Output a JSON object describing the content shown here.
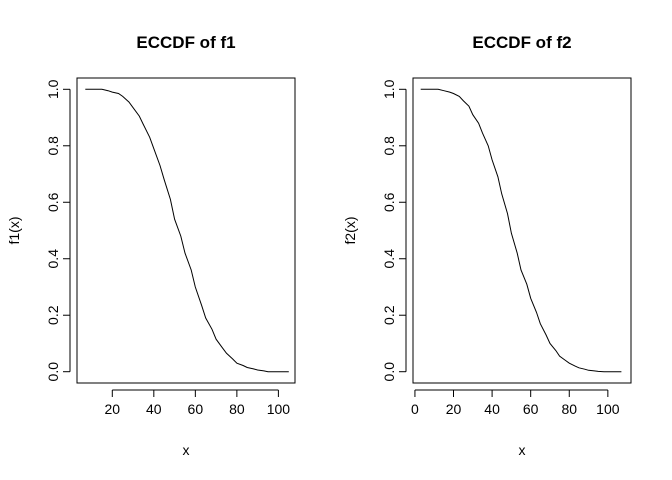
{
  "chart_data": [
    {
      "type": "line",
      "title": "ECCDF of f1",
      "xlabel": "x",
      "ylabel": "f1(x)",
      "xlim": [
        3,
        108
      ],
      "ylim": [
        -0.04,
        1.04
      ],
      "xticks": [
        20,
        40,
        60,
        80,
        100
      ],
      "yticks": [
        0.0,
        0.2,
        0.4,
        0.6,
        0.8,
        1.0
      ],
      "ytick_labels": [
        "0.0",
        "0.2",
        "0.4",
        "0.6",
        "0.8",
        "1.0"
      ],
      "grid": false,
      "x": [
        7,
        10,
        15,
        18,
        20,
        23,
        25,
        28,
        30,
        33,
        35,
        38,
        40,
        43,
        45,
        48,
        50,
        53,
        55,
        58,
        60,
        63,
        65,
        68,
        70,
        73,
        75,
        78,
        80,
        83,
        85,
        88,
        90,
        93,
        95,
        98,
        100,
        103,
        105
      ],
      "y": [
        1.0,
        1.0,
        1.0,
        0.995,
        0.99,
        0.985,
        0.975,
        0.955,
        0.935,
        0.905,
        0.875,
        0.83,
        0.79,
        0.73,
        0.68,
        0.61,
        0.54,
        0.48,
        0.42,
        0.36,
        0.3,
        0.235,
        0.19,
        0.15,
        0.115,
        0.085,
        0.065,
        0.045,
        0.03,
        0.022,
        0.015,
        0.01,
        0.006,
        0.003,
        0.0,
        0.0,
        0.0,
        0.0,
        0.0
      ]
    },
    {
      "type": "line",
      "title": "ECCDF of f2",
      "xlabel": "x",
      "ylabel": "f2(x)",
      "xlim": [
        -1,
        112
      ],
      "ylim": [
        -0.04,
        1.04
      ],
      "xticks": [
        0,
        20,
        40,
        60,
        80,
        100
      ],
      "yticks": [
        0.0,
        0.2,
        0.4,
        0.6,
        0.8,
        1.0
      ],
      "ytick_labels": [
        "0.0",
        "0.2",
        "0.4",
        "0.6",
        "0.8",
        "1.0"
      ],
      "grid": false,
      "x": [
        3,
        8,
        12,
        15,
        18,
        20,
        23,
        25,
        28,
        30,
        33,
        35,
        38,
        40,
        43,
        45,
        48,
        50,
        53,
        55,
        58,
        60,
        63,
        65,
        68,
        70,
        73,
        75,
        78,
        80,
        83,
        85,
        88,
        90,
        93,
        95,
        98,
        100,
        103,
        107
      ],
      "y": [
        1.0,
        1.0,
        1.0,
        0.995,
        0.99,
        0.985,
        0.975,
        0.96,
        0.94,
        0.91,
        0.88,
        0.845,
        0.8,
        0.75,
        0.69,
        0.63,
        0.56,
        0.49,
        0.42,
        0.36,
        0.31,
        0.26,
        0.21,
        0.17,
        0.13,
        0.1,
        0.075,
        0.055,
        0.04,
        0.03,
        0.02,
        0.014,
        0.009,
        0.005,
        0.003,
        0.001,
        0.0,
        0.0,
        0.0,
        0.0
      ]
    }
  ]
}
